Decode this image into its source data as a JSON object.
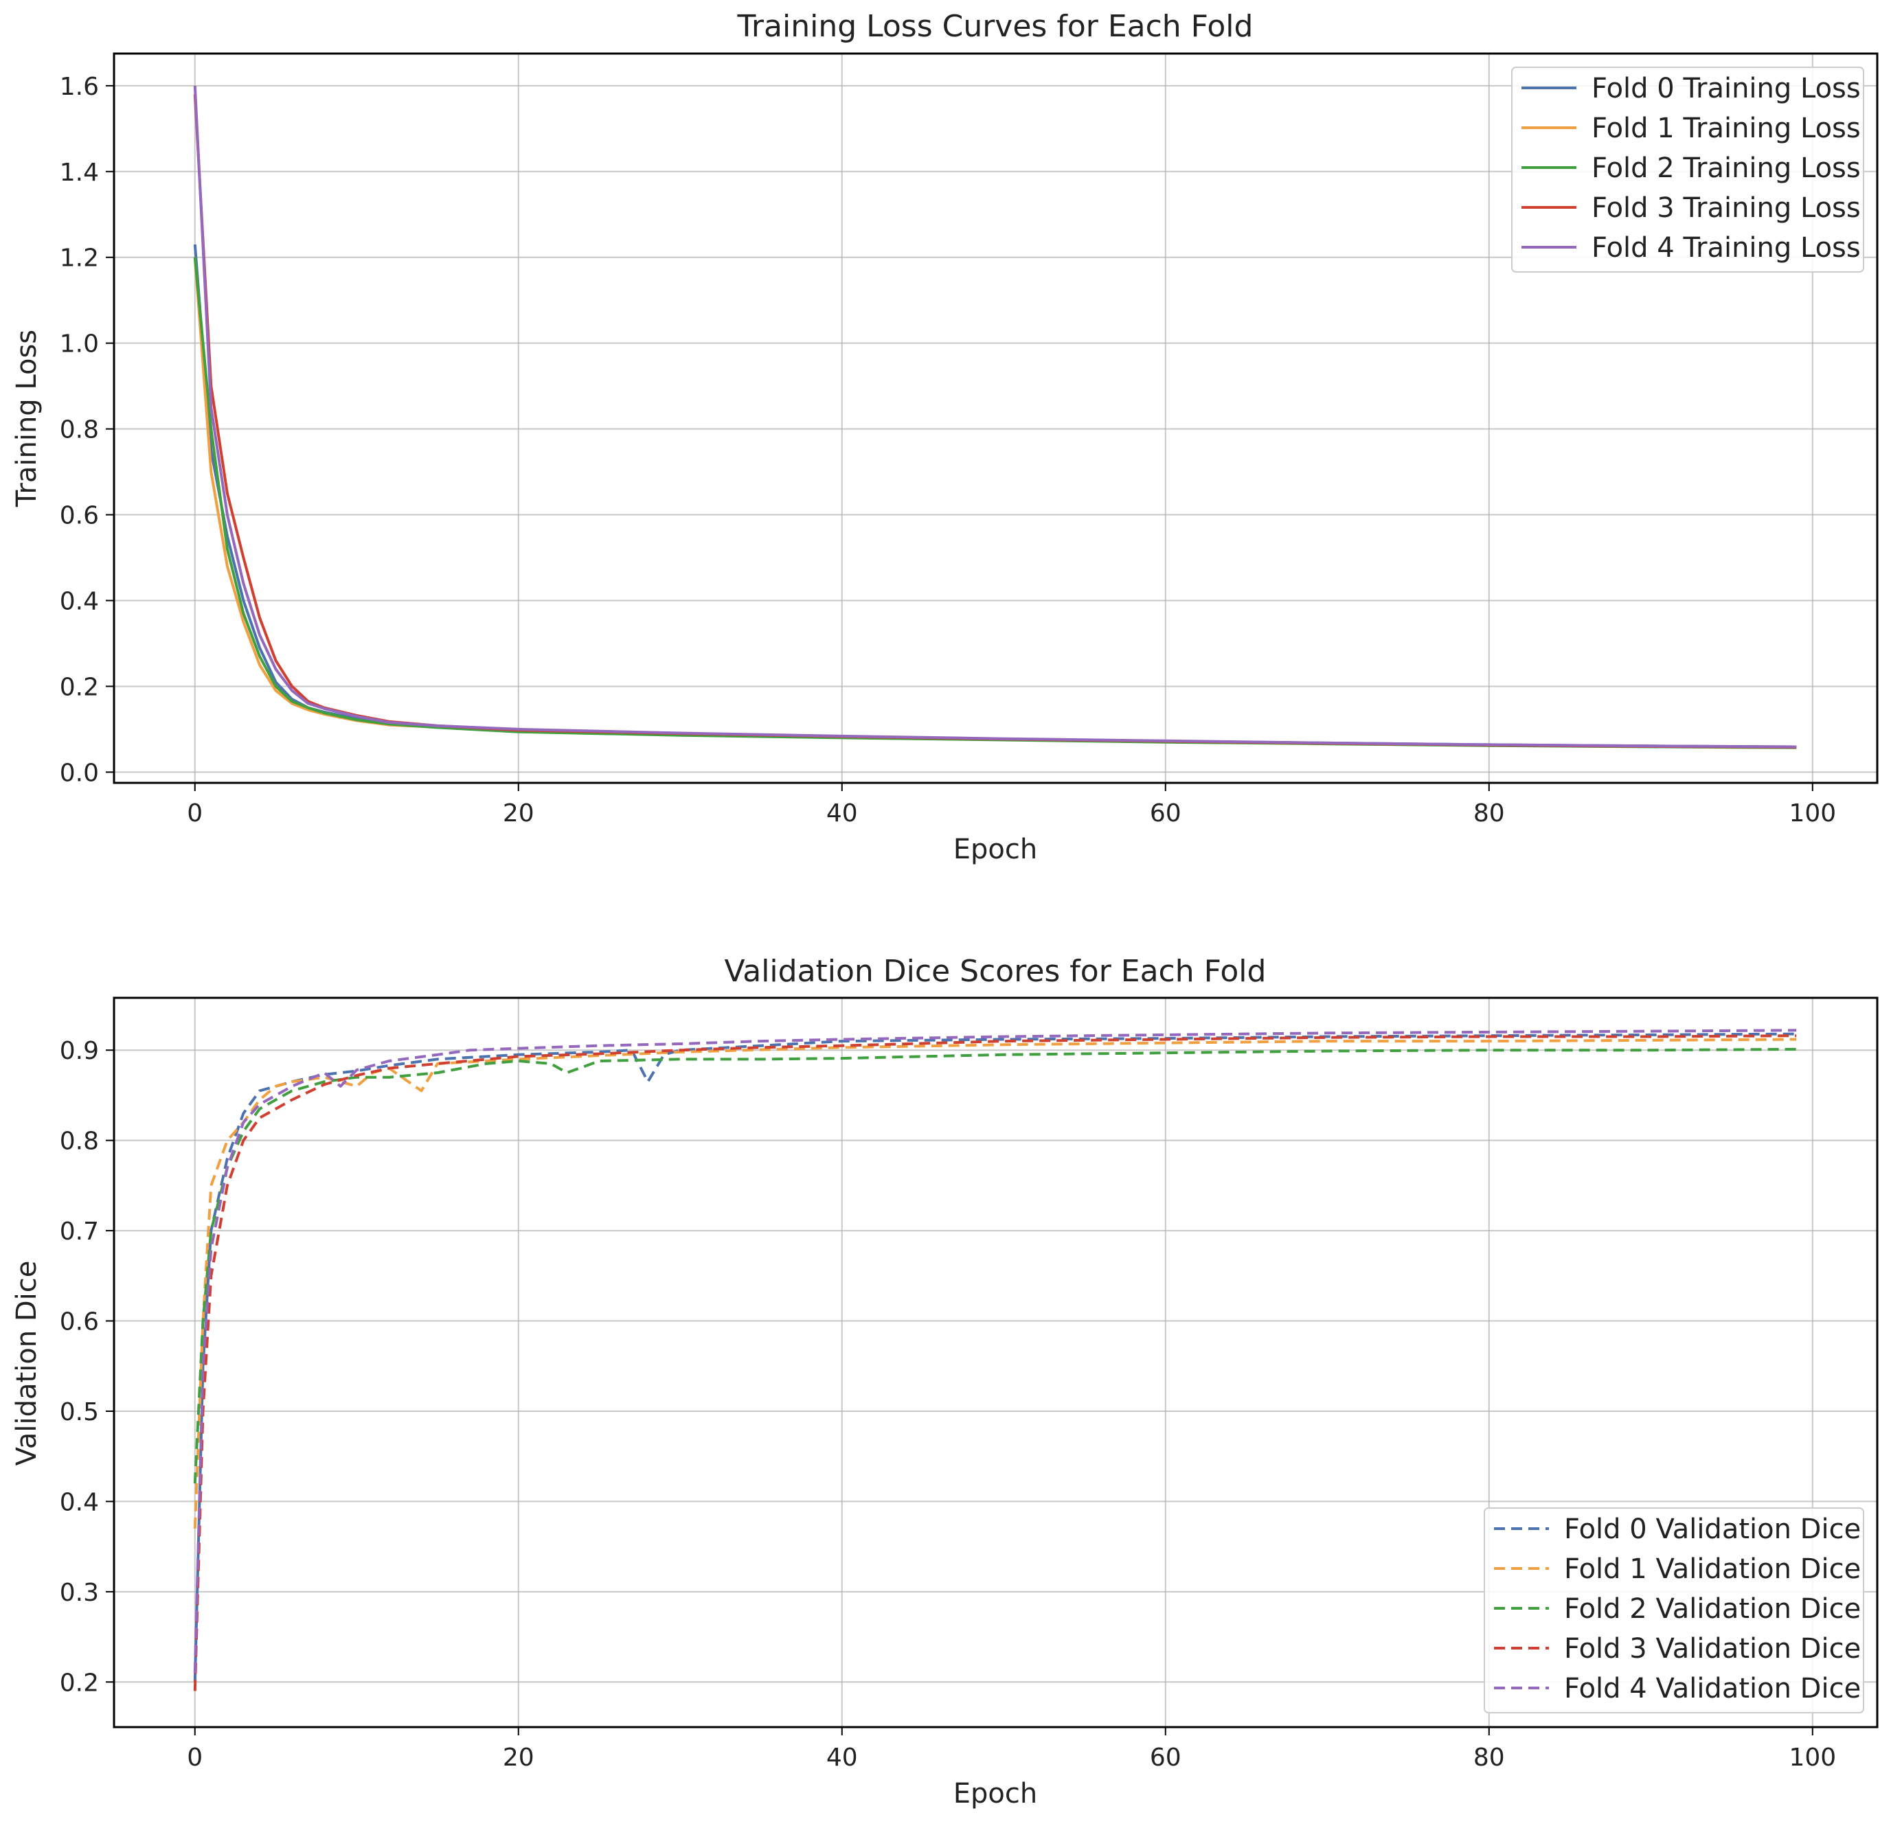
{
  "charts": [
    {
      "type": "line",
      "title": "Training Loss Curves for Each Fold",
      "xlabel": "Epoch",
      "ylabel": "Training Loss",
      "xlim": [
        -5,
        104
      ],
      "ylim": [
        -0.025,
        1.675
      ],
      "xticks": [
        0,
        20,
        40,
        60,
        80,
        100
      ],
      "xtick_labels": [
        "0",
        "20",
        "40",
        "60",
        "80",
        "100"
      ],
      "yticks": [
        0.0,
        0.2,
        0.4,
        0.6,
        0.8,
        1.0,
        1.2,
        1.4,
        1.6
      ],
      "ytick_labels": [
        "0.0",
        "0.2",
        "0.4",
        "0.6",
        "0.8",
        "1.0",
        "1.2",
        "1.4",
        "1.6"
      ],
      "grid": true,
      "legend_position": "top-right",
      "line_style": "solid",
      "series": [
        {
          "name": "Fold 0 Training Loss",
          "color": "#4c72b0",
          "x": [
            0,
            1,
            2,
            3,
            4,
            5,
            6,
            7,
            8,
            10,
            12,
            15,
            20,
            30,
            40,
            50,
            60,
            70,
            80,
            90,
            99
          ],
          "y": [
            1.23,
            0.75,
            0.55,
            0.4,
            0.29,
            0.21,
            0.17,
            0.15,
            0.14,
            0.125,
            0.115,
            0.105,
            0.097,
            0.089,
            0.082,
            0.076,
            0.072,
            0.068,
            0.064,
            0.061,
            0.059
          ]
        },
        {
          "name": "Fold 1 Training Loss",
          "color": "#f0a040",
          "x": [
            0,
            1,
            2,
            3,
            4,
            5,
            6,
            7,
            8,
            10,
            12,
            15,
            20,
            30,
            40,
            50,
            60,
            70,
            80,
            90,
            99
          ],
          "y": [
            1.2,
            0.7,
            0.48,
            0.35,
            0.25,
            0.19,
            0.16,
            0.145,
            0.135,
            0.12,
            0.11,
            0.105,
            0.096,
            0.088,
            0.081,
            0.076,
            0.071,
            0.067,
            0.063,
            0.06,
            0.058
          ]
        },
        {
          "name": "Fold 2 Training Loss",
          "color": "#40a040",
          "x": [
            0,
            1,
            2,
            3,
            4,
            5,
            6,
            7,
            8,
            10,
            12,
            15,
            20,
            30,
            40,
            50,
            60,
            70,
            80,
            90,
            99
          ],
          "y": [
            1.2,
            0.8,
            0.52,
            0.37,
            0.27,
            0.2,
            0.165,
            0.15,
            0.138,
            0.122,
            0.112,
            0.104,
            0.094,
            0.086,
            0.08,
            0.075,
            0.07,
            0.066,
            0.062,
            0.059,
            0.057
          ]
        },
        {
          "name": "Fold 3 Training Loss",
          "color": "#d04030",
          "x": [
            0,
            1,
            2,
            3,
            4,
            5,
            6,
            7,
            8,
            10,
            12,
            15,
            20,
            30,
            40,
            50,
            60,
            70,
            80,
            90,
            99
          ],
          "y": [
            1.58,
            0.9,
            0.65,
            0.5,
            0.36,
            0.26,
            0.2,
            0.165,
            0.15,
            0.132,
            0.118,
            0.108,
            0.098,
            0.09,
            0.083,
            0.077,
            0.072,
            0.067,
            0.063,
            0.06,
            0.058
          ]
        },
        {
          "name": "Fold 4 Training Loss",
          "color": "#9468bd",
          "x": [
            0,
            1,
            2,
            3,
            4,
            5,
            6,
            7,
            8,
            10,
            12,
            15,
            20,
            30,
            40,
            50,
            60,
            70,
            80,
            90,
            99
          ],
          "y": [
            1.6,
            0.85,
            0.6,
            0.44,
            0.32,
            0.24,
            0.19,
            0.16,
            0.148,
            0.13,
            0.116,
            0.108,
            0.1,
            0.091,
            0.084,
            0.078,
            0.073,
            0.068,
            0.064,
            0.061,
            0.059
          ]
        }
      ]
    },
    {
      "type": "line",
      "title": "Validation Dice Scores for Each Fold",
      "xlabel": "Epoch",
      "ylabel": "Validation Dice",
      "xlim": [
        -5,
        104
      ],
      "ylim": [
        0.15,
        0.958
      ],
      "xticks": [
        0,
        20,
        40,
        60,
        80,
        100
      ],
      "xtick_labels": [
        "0",
        "20",
        "40",
        "60",
        "80",
        "100"
      ],
      "yticks": [
        0.2,
        0.3,
        0.4,
        0.5,
        0.6,
        0.7,
        0.8,
        0.9
      ],
      "ytick_labels": [
        "0.2",
        "0.3",
        "0.4",
        "0.5",
        "0.6",
        "0.7",
        "0.8",
        "0.9"
      ],
      "grid": true,
      "legend_position": "bottom-right",
      "line_style": "dashed",
      "series": [
        {
          "name": "Fold 0 Validation Dice",
          "color": "#4c72b0",
          "x": [
            0,
            0.5,
            1,
            2,
            3,
            4,
            5,
            6,
            8,
            10,
            12,
            15,
            20,
            25,
            27,
            28,
            29,
            30,
            35,
            40,
            50,
            60,
            70,
            80,
            90,
            99
          ],
          "y": [
            0.2,
            0.55,
            0.7,
            0.78,
            0.83,
            0.855,
            0.86,
            0.865,
            0.873,
            0.877,
            0.883,
            0.89,
            0.895,
            0.898,
            0.9,
            0.865,
            0.895,
            0.9,
            0.905,
            0.91,
            0.912,
            0.913,
            0.915,
            0.916,
            0.917,
            0.918
          ]
        },
        {
          "name": "Fold 1 Validation Dice",
          "color": "#f0a040",
          "x": [
            0,
            0.5,
            1,
            2,
            3,
            4,
            5,
            6,
            8,
            10,
            11,
            12,
            14,
            15,
            20,
            30,
            40,
            50,
            60,
            70,
            80,
            90,
            99
          ],
          "y": [
            0.37,
            0.6,
            0.75,
            0.8,
            0.82,
            0.845,
            0.86,
            0.865,
            0.87,
            0.86,
            0.875,
            0.88,
            0.855,
            0.885,
            0.89,
            0.898,
            0.903,
            0.906,
            0.908,
            0.91,
            0.91,
            0.911,
            0.912
          ]
        },
        {
          "name": "Fold 2 Validation Dice",
          "color": "#40a040",
          "x": [
            0,
            0.5,
            1,
            2,
            3,
            4,
            5,
            6,
            8,
            10,
            12,
            15,
            18,
            20,
            22,
            23,
            25,
            30,
            35,
            40,
            45,
            50,
            60,
            70,
            80,
            90,
            99
          ],
          "y": [
            0.42,
            0.6,
            0.7,
            0.77,
            0.81,
            0.835,
            0.845,
            0.855,
            0.865,
            0.87,
            0.87,
            0.875,
            0.885,
            0.888,
            0.885,
            0.875,
            0.888,
            0.89,
            0.89,
            0.891,
            0.893,
            0.895,
            0.897,
            0.899,
            0.9,
            0.9,
            0.901
          ]
        },
        {
          "name": "Fold 3 Validation Dice",
          "color": "#d04030",
          "x": [
            0,
            0.5,
            1,
            2,
            3,
            4,
            5,
            6,
            8,
            10,
            12,
            15,
            20,
            25,
            30,
            35,
            40,
            50,
            60,
            70,
            80,
            90,
            99
          ],
          "y": [
            0.19,
            0.5,
            0.65,
            0.75,
            0.8,
            0.825,
            0.835,
            0.845,
            0.862,
            0.872,
            0.88,
            0.885,
            0.893,
            0.896,
            0.9,
            0.903,
            0.905,
            0.91,
            0.912,
            0.914,
            0.915,
            0.915,
            0.916
          ]
        },
        {
          "name": "Fold 4 Validation Dice",
          "color": "#9468bd",
          "x": [
            0,
            0.5,
            1,
            2,
            3,
            4,
            5,
            6,
            8,
            9,
            10,
            12,
            15,
            17,
            20,
            25,
            30,
            35,
            40,
            50,
            60,
            70,
            80,
            90,
            99
          ],
          "y": [
            0.21,
            0.55,
            0.68,
            0.77,
            0.82,
            0.84,
            0.85,
            0.86,
            0.875,
            0.86,
            0.878,
            0.888,
            0.895,
            0.9,
            0.902,
            0.905,
            0.907,
            0.91,
            0.912,
            0.915,
            0.917,
            0.919,
            0.92,
            0.921,
            0.922
          ]
        }
      ]
    }
  ]
}
